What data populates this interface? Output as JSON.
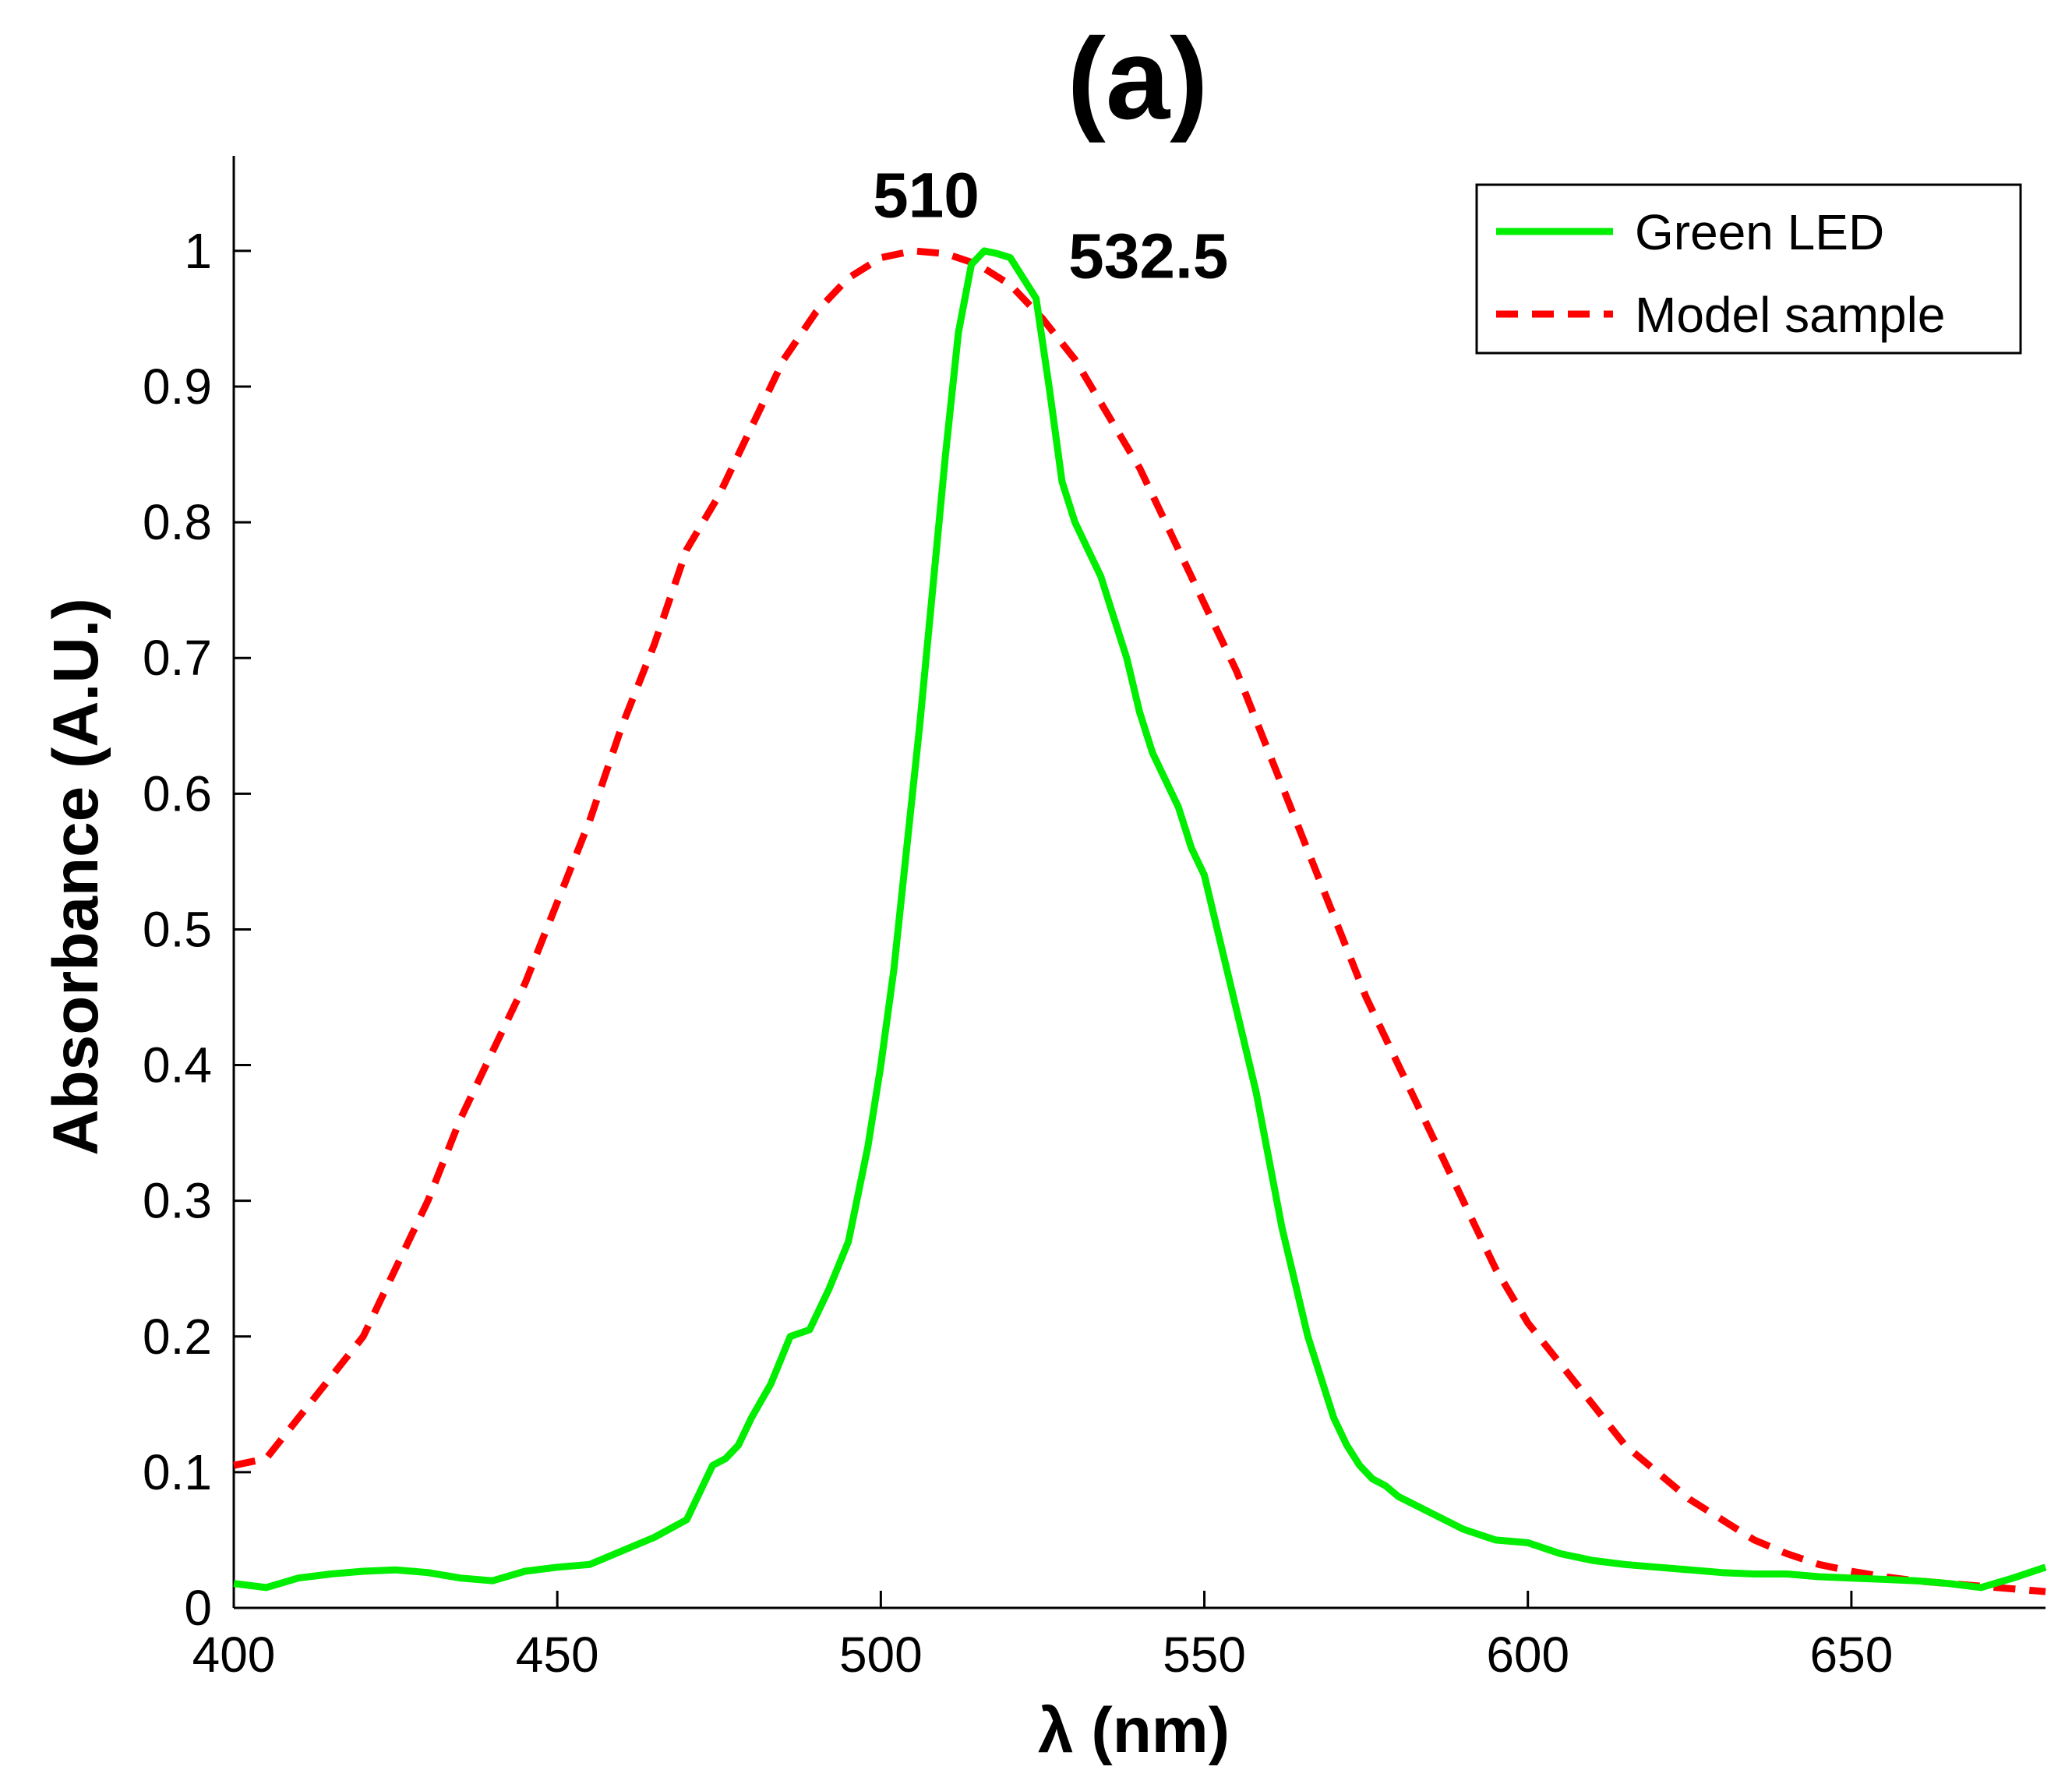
{
  "chart_data": {
    "type": "line",
    "title": "(a)",
    "xlabel": "λ (nm)",
    "ylabel": "Absorbance (A.U.)",
    "xlim": [
      400,
      680
    ],
    "ylim": [
      0,
      1.07
    ],
    "xticks": [
      400,
      450,
      500,
      550,
      600,
      650
    ],
    "yticks": [
      0,
      0.1,
      0.2,
      0.3,
      0.4,
      0.5,
      0.6,
      0.7,
      0.8,
      0.9,
      1
    ],
    "xtick_labels": [
      "400",
      "450",
      "500",
      "550",
      "600",
      "650"
    ],
    "ytick_labels": [
      "0",
      "0.1",
      "0.2",
      "0.3",
      "0.4",
      "0.5",
      "0.6",
      "0.7",
      "0.8",
      "0.9",
      "1"
    ],
    "grid": false,
    "legend_position": "top-right",
    "annotations": [
      {
        "text": "510",
        "x": 507,
        "y": 1.025
      },
      {
        "text": "532.5",
        "x": 529,
        "y": 0.98
      }
    ],
    "series": [
      {
        "name": "Green LED",
        "color": "#00ee00",
        "style": "solid",
        "x": [
          400,
          405,
          410,
          415,
          420,
          425,
          430,
          435,
          440,
          445,
          450,
          455,
          460,
          465,
          470,
          472,
          474,
          476,
          478,
          480,
          483,
          486,
          489,
          492,
          495,
          498,
          500,
          502,
          504,
          506,
          508,
          510,
          512,
          514,
          516,
          518,
          520,
          522,
          524,
          526,
          528,
          530,
          532,
          534,
          536,
          538,
          540,
          542,
          544,
          546,
          548,
          550,
          552,
          554,
          556,
          558,
          560,
          562,
          564,
          566,
          568,
          570,
          572,
          574,
          576,
          578,
          580,
          585,
          590,
          595,
          600,
          605,
          610,
          615,
          620,
          625,
          630,
          635,
          640,
          645,
          650,
          655,
          660,
          665,
          670,
          675,
          680
        ],
        "values": [
          0.018,
          0.015,
          0.022,
          0.025,
          0.027,
          0.028,
          0.026,
          0.022,
          0.02,
          0.027,
          0.03,
          0.032,
          0.042,
          0.052,
          0.065,
          0.085,
          0.105,
          0.11,
          0.12,
          0.14,
          0.165,
          0.2,
          0.205,
          0.235,
          0.27,
          0.34,
          0.4,
          0.47,
          0.56,
          0.65,
          0.75,
          0.85,
          0.94,
          0.99,
          1.0,
          0.998,
          0.995,
          0.98,
          0.965,
          0.9,
          0.83,
          0.8,
          0.78,
          0.76,
          0.73,
          0.7,
          0.66,
          0.63,
          0.61,
          0.59,
          0.56,
          0.54,
          0.5,
          0.46,
          0.42,
          0.38,
          0.33,
          0.28,
          0.24,
          0.2,
          0.17,
          0.14,
          0.12,
          0.105,
          0.095,
          0.09,
          0.082,
          0.07,
          0.058,
          0.05,
          0.048,
          0.04,
          0.035,
          0.032,
          0.03,
          0.028,
          0.026,
          0.025,
          0.025,
          0.023,
          0.022,
          0.021,
          0.02,
          0.018,
          0.015,
          0.022,
          0.03
        ]
      },
      {
        "name": "Model sample",
        "color": "#ff0000",
        "style": "dashed",
        "x": [
          400,
          405,
          410,
          415,
          420,
          425,
          430,
          435,
          440,
          445,
          450,
          455,
          460,
          465,
          470,
          475,
          480,
          485,
          490,
          495,
          500,
          505,
          510,
          515,
          520,
          525,
          530,
          535,
          540,
          545,
          550,
          555,
          560,
          565,
          570,
          575,
          580,
          585,
          590,
          595,
          600,
          605,
          610,
          615,
          620,
          625,
          630,
          635,
          640,
          645,
          650,
          655,
          660,
          665,
          670,
          675,
          680
        ],
        "values": [
          0.105,
          0.11,
          0.14,
          0.17,
          0.2,
          0.25,
          0.3,
          0.36,
          0.41,
          0.46,
          0.52,
          0.58,
          0.65,
          0.71,
          0.78,
          0.82,
          0.87,
          0.92,
          0.955,
          0.98,
          0.995,
          1.0,
          0.998,
          0.99,
          0.975,
          0.95,
          0.92,
          0.88,
          0.84,
          0.79,
          0.74,
          0.69,
          0.63,
          0.57,
          0.51,
          0.45,
          0.4,
          0.35,
          0.3,
          0.25,
          0.21,
          0.18,
          0.15,
          0.12,
          0.1,
          0.08,
          0.065,
          0.05,
          0.04,
          0.032,
          0.027,
          0.023,
          0.02,
          0.018,
          0.016,
          0.014,
          0.012
        ]
      }
    ]
  }
}
